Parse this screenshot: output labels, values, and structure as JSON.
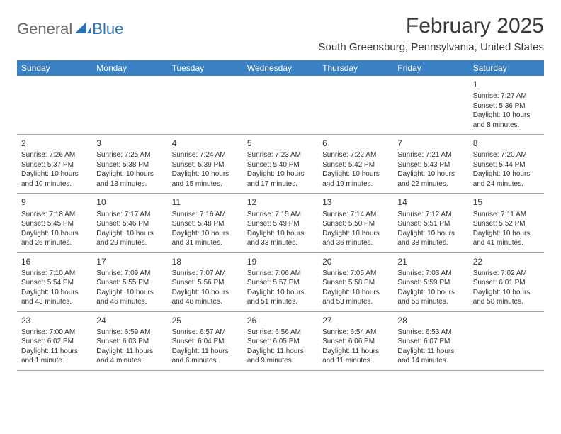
{
  "brand": {
    "part1": "General",
    "part2": "Blue"
  },
  "title": "February 2025",
  "location": "South Greensburg, Pennsylvania, United States",
  "colors": {
    "header_bg": "#3b82c4",
    "header_text": "#ffffff",
    "border": "#9aa7b3",
    "brand_gray": "#6a6a6a",
    "brand_blue": "#2e74b5",
    "text": "#333333",
    "background": "#ffffff"
  },
  "dayNames": [
    "Sunday",
    "Monday",
    "Tuesday",
    "Wednesday",
    "Thursday",
    "Friday",
    "Saturday"
  ],
  "weeks": [
    [
      null,
      null,
      null,
      null,
      null,
      null,
      {
        "n": "1",
        "sr": "Sunrise: 7:27 AM",
        "ss": "Sunset: 5:36 PM",
        "dl": "Daylight: 10 hours and 8 minutes."
      }
    ],
    [
      {
        "n": "2",
        "sr": "Sunrise: 7:26 AM",
        "ss": "Sunset: 5:37 PM",
        "dl": "Daylight: 10 hours and 10 minutes."
      },
      {
        "n": "3",
        "sr": "Sunrise: 7:25 AM",
        "ss": "Sunset: 5:38 PM",
        "dl": "Daylight: 10 hours and 13 minutes."
      },
      {
        "n": "4",
        "sr": "Sunrise: 7:24 AM",
        "ss": "Sunset: 5:39 PM",
        "dl": "Daylight: 10 hours and 15 minutes."
      },
      {
        "n": "5",
        "sr": "Sunrise: 7:23 AM",
        "ss": "Sunset: 5:40 PM",
        "dl": "Daylight: 10 hours and 17 minutes."
      },
      {
        "n": "6",
        "sr": "Sunrise: 7:22 AM",
        "ss": "Sunset: 5:42 PM",
        "dl": "Daylight: 10 hours and 19 minutes."
      },
      {
        "n": "7",
        "sr": "Sunrise: 7:21 AM",
        "ss": "Sunset: 5:43 PM",
        "dl": "Daylight: 10 hours and 22 minutes."
      },
      {
        "n": "8",
        "sr": "Sunrise: 7:20 AM",
        "ss": "Sunset: 5:44 PM",
        "dl": "Daylight: 10 hours and 24 minutes."
      }
    ],
    [
      {
        "n": "9",
        "sr": "Sunrise: 7:18 AM",
        "ss": "Sunset: 5:45 PM",
        "dl": "Daylight: 10 hours and 26 minutes."
      },
      {
        "n": "10",
        "sr": "Sunrise: 7:17 AM",
        "ss": "Sunset: 5:46 PM",
        "dl": "Daylight: 10 hours and 29 minutes."
      },
      {
        "n": "11",
        "sr": "Sunrise: 7:16 AM",
        "ss": "Sunset: 5:48 PM",
        "dl": "Daylight: 10 hours and 31 minutes."
      },
      {
        "n": "12",
        "sr": "Sunrise: 7:15 AM",
        "ss": "Sunset: 5:49 PM",
        "dl": "Daylight: 10 hours and 33 minutes."
      },
      {
        "n": "13",
        "sr": "Sunrise: 7:14 AM",
        "ss": "Sunset: 5:50 PM",
        "dl": "Daylight: 10 hours and 36 minutes."
      },
      {
        "n": "14",
        "sr": "Sunrise: 7:12 AM",
        "ss": "Sunset: 5:51 PM",
        "dl": "Daylight: 10 hours and 38 minutes."
      },
      {
        "n": "15",
        "sr": "Sunrise: 7:11 AM",
        "ss": "Sunset: 5:52 PM",
        "dl": "Daylight: 10 hours and 41 minutes."
      }
    ],
    [
      {
        "n": "16",
        "sr": "Sunrise: 7:10 AM",
        "ss": "Sunset: 5:54 PM",
        "dl": "Daylight: 10 hours and 43 minutes."
      },
      {
        "n": "17",
        "sr": "Sunrise: 7:09 AM",
        "ss": "Sunset: 5:55 PM",
        "dl": "Daylight: 10 hours and 46 minutes."
      },
      {
        "n": "18",
        "sr": "Sunrise: 7:07 AM",
        "ss": "Sunset: 5:56 PM",
        "dl": "Daylight: 10 hours and 48 minutes."
      },
      {
        "n": "19",
        "sr": "Sunrise: 7:06 AM",
        "ss": "Sunset: 5:57 PM",
        "dl": "Daylight: 10 hours and 51 minutes."
      },
      {
        "n": "20",
        "sr": "Sunrise: 7:05 AM",
        "ss": "Sunset: 5:58 PM",
        "dl": "Daylight: 10 hours and 53 minutes."
      },
      {
        "n": "21",
        "sr": "Sunrise: 7:03 AM",
        "ss": "Sunset: 5:59 PM",
        "dl": "Daylight: 10 hours and 56 minutes."
      },
      {
        "n": "22",
        "sr": "Sunrise: 7:02 AM",
        "ss": "Sunset: 6:01 PM",
        "dl": "Daylight: 10 hours and 58 minutes."
      }
    ],
    [
      {
        "n": "23",
        "sr": "Sunrise: 7:00 AM",
        "ss": "Sunset: 6:02 PM",
        "dl": "Daylight: 11 hours and 1 minute."
      },
      {
        "n": "24",
        "sr": "Sunrise: 6:59 AM",
        "ss": "Sunset: 6:03 PM",
        "dl": "Daylight: 11 hours and 4 minutes."
      },
      {
        "n": "25",
        "sr": "Sunrise: 6:57 AM",
        "ss": "Sunset: 6:04 PM",
        "dl": "Daylight: 11 hours and 6 minutes."
      },
      {
        "n": "26",
        "sr": "Sunrise: 6:56 AM",
        "ss": "Sunset: 6:05 PM",
        "dl": "Daylight: 11 hours and 9 minutes."
      },
      {
        "n": "27",
        "sr": "Sunrise: 6:54 AM",
        "ss": "Sunset: 6:06 PM",
        "dl": "Daylight: 11 hours and 11 minutes."
      },
      {
        "n": "28",
        "sr": "Sunrise: 6:53 AM",
        "ss": "Sunset: 6:07 PM",
        "dl": "Daylight: 11 hours and 14 minutes."
      },
      null
    ]
  ]
}
